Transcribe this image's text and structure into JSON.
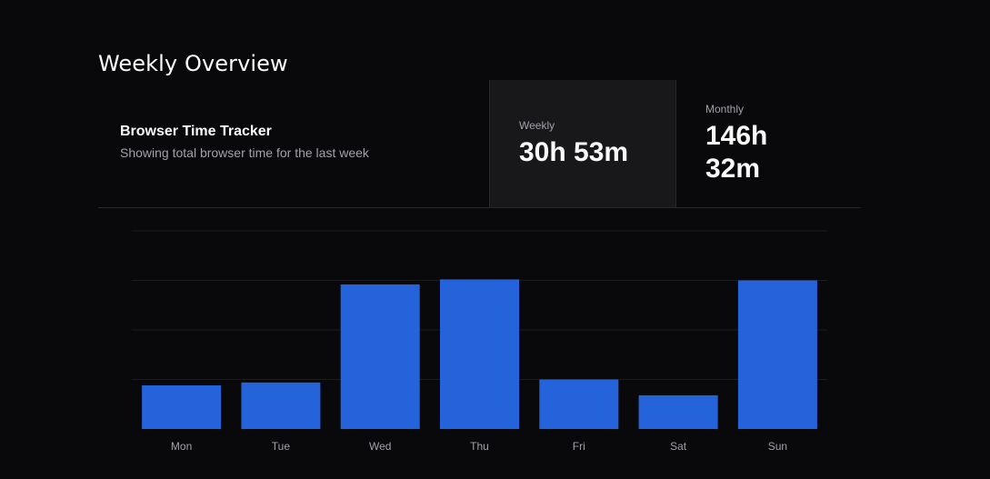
{
  "page": {
    "title": "Weekly Overview"
  },
  "card": {
    "title": "Browser Time Tracker",
    "description": "Showing total browser time for the last week"
  },
  "stats": {
    "weekly_label": "Weekly",
    "weekly_value": "30h 53m",
    "monthly_label": "Monthly",
    "monthly_value": "146h 32m"
  },
  "colors": {
    "bar": "#2563db",
    "grid": "#1c1c20",
    "background": "#09090b",
    "active_stat_bg": "#18181b"
  },
  "chart_data": {
    "type": "bar",
    "categories": [
      "Mon",
      "Tue",
      "Wed",
      "Thu",
      "Fri",
      "Sat",
      "Sun"
    ],
    "values": [
      2.2,
      2.35,
      7.3,
      7.55,
      2.5,
      1.7,
      7.5
    ],
    "ylim": [
      0,
      10
    ],
    "grid": true,
    "y_axis_visible": false,
    "legend": "none"
  }
}
